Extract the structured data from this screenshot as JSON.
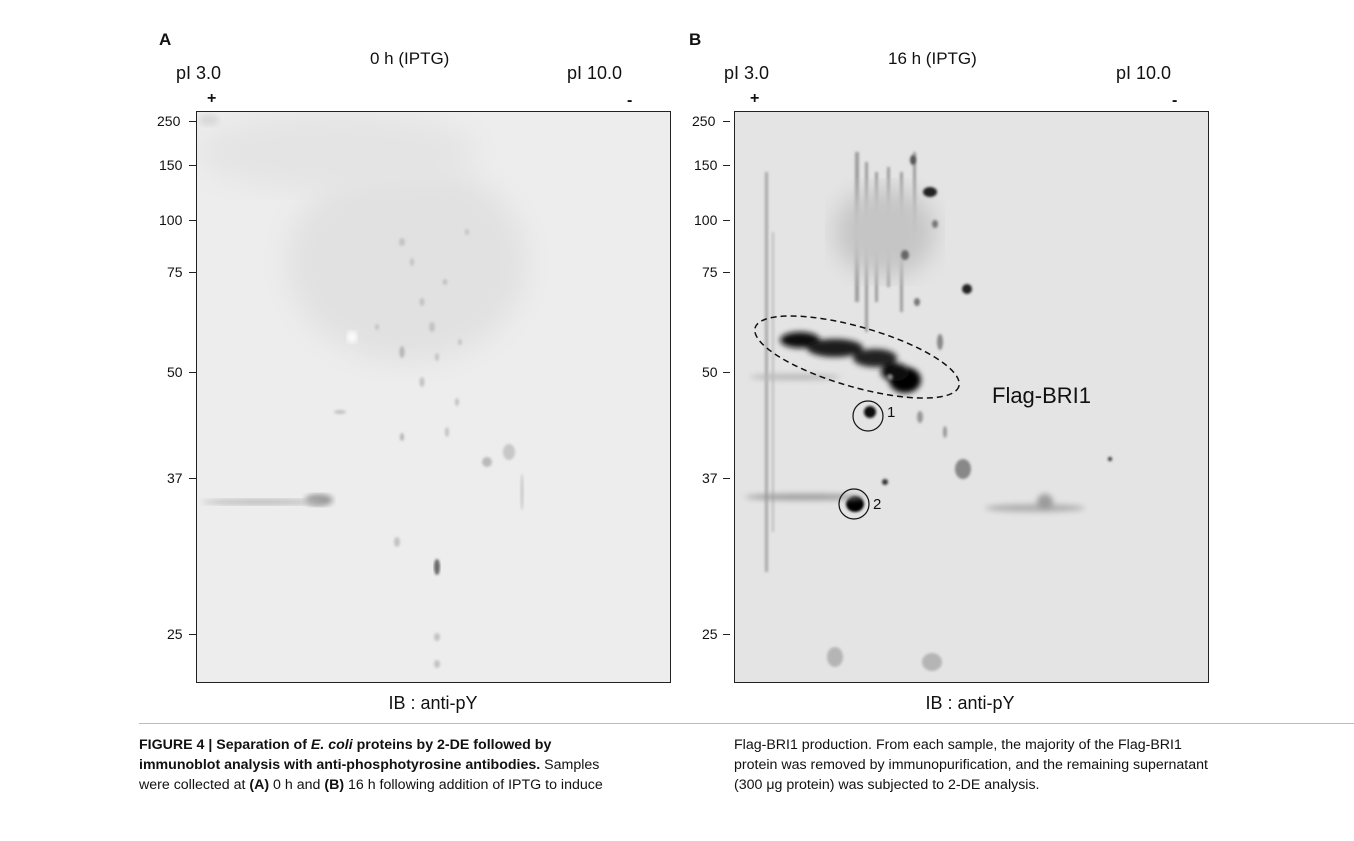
{
  "panels": [
    {
      "letter": "A",
      "condition": "0 h (IPTG)",
      "pi_left": "pI 3.0",
      "pi_right": "pI 10.0",
      "plus": "+",
      "minus": "-",
      "ib_label": "IB : anti-pY",
      "mw_markers": [
        "250",
        "150",
        "100",
        "75",
        "50",
        "37",
        "25"
      ]
    },
    {
      "letter": "B",
      "condition": "16 h (IPTG)",
      "pi_left": "pI 3.0",
      "pi_right": "pI 10.0",
      "plus": "+",
      "minus": "-",
      "ib_label": "IB : anti-pY",
      "mw_markers": [
        "250",
        "150",
        "100",
        "75",
        "50",
        "37",
        "25"
      ],
      "annotation": "Flag-BRI1",
      "spots": [
        "1",
        "2"
      ]
    }
  ],
  "caption": {
    "left_title": "FIGURE 4 | Separation of E. coli proteins by 2-DE followed by immunoblot analysis with anti-phosphotyrosine antibodies.",
    "left_title_a": "FIGURE 4 | Separation of ",
    "left_title_b": "E. coli",
    "left_title_c": " proteins by 2-DE followed by",
    "left_title_d": "immunoblot analysis with anti-phosphotyrosine antibodies.",
    "left_text_1": " Samples",
    "left_text_2": "were collected at ",
    "left_a": "(A)",
    "left_text_3": " 0 h and ",
    "left_b": "(B)",
    "left_text_4": " 16 h following addition of IPTG to induce",
    "right_line_1": "Flag-BRI1 production. From each sample, the majority of the Flag-BRI1",
    "right_line_2": "protein was removed by immunopurification, and the remaining supernatant",
    "right_line_3": "(300 μg protein) was subjected to 2-DE analysis."
  }
}
